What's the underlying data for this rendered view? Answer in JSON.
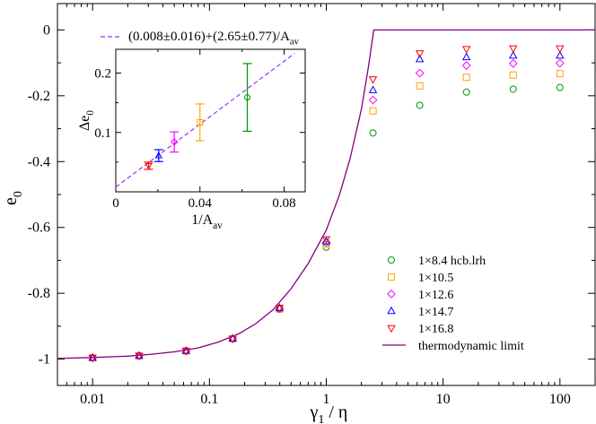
{
  "chart_data": [
    {
      "type": "scatter",
      "xscale": "log",
      "xlim": [
        0.005,
        200
      ],
      "ylim": [
        -1.08,
        0.08
      ],
      "xlabel_main": "γ",
      "xlabel_sub": "1",
      "xlabel_rest": " / η",
      "ylabel_main": "e",
      "ylabel_sub": "0",
      "xticks": [
        {
          "v": 0.01,
          "label": "0.01"
        },
        {
          "v": 0.1,
          "label": "0.1"
        },
        {
          "v": 1,
          "label": "1"
        },
        {
          "v": 10,
          "label": "10"
        },
        {
          "v": 100,
          "label": "100"
        }
      ],
      "yticks": [
        {
          "v": 0,
          "label": "0"
        },
        {
          "v": -0.2,
          "label": "-0.2"
        },
        {
          "v": -0.4,
          "label": "-0.4"
        },
        {
          "v": -0.6,
          "label": "-0.6"
        },
        {
          "v": -0.8,
          "label": "-0.8"
        },
        {
          "v": -1,
          "label": "-1"
        }
      ],
      "series": [
        {
          "name": "1×8.4  hcb.lrh",
          "marker": "circle",
          "color": "#009900",
          "x": [
            0.01,
            0.025,
            0.063,
            0.158,
            0.398,
            1,
            2.512,
            6.31,
            15.85,
            39.81,
            100
          ],
          "y": [
            -0.996,
            -0.99,
            -0.975,
            -0.938,
            -0.848,
            -0.66,
            -0.313,
            -0.229,
            -0.189,
            -0.18,
            -0.175
          ]
        },
        {
          "name": "1×10.5",
          "marker": "square",
          "color": "#ffa500",
          "x": [
            0.01,
            0.025,
            0.063,
            0.158,
            0.398,
            1,
            2.512,
            6.31,
            15.85,
            39.81,
            100
          ],
          "y": [
            -0.996,
            -0.99,
            -0.975,
            -0.938,
            -0.848,
            -0.651,
            -0.246,
            -0.17,
            -0.144,
            -0.137,
            -0.133
          ]
        },
        {
          "name": "1×12.6",
          "marker": "diamond",
          "color": "#ff00ff",
          "x": [
            0.01,
            0.025,
            0.063,
            0.158,
            0.398,
            1,
            2.512,
            6.31,
            15.85,
            39.81,
            100
          ],
          "y": [
            -0.996,
            -0.99,
            -0.975,
            -0.938,
            -0.847,
            -0.646,
            -0.213,
            -0.131,
            -0.108,
            -0.102,
            -0.101
          ]
        },
        {
          "name": "1×14.7",
          "marker": "triangle-up",
          "color": "#0000ff",
          "x": [
            0.01,
            0.025,
            0.063,
            0.158,
            0.398,
            1,
            2.512,
            6.31,
            15.85,
            39.81,
            100
          ],
          "y": [
            -0.996,
            -0.99,
            -0.975,
            -0.938,
            -0.845,
            -0.642,
            -0.183,
            -0.089,
            -0.083,
            -0.078,
            -0.078
          ]
        },
        {
          "name": "1×16.8",
          "marker": "triangle-down",
          "color": "#ff0000",
          "x": [
            0.01,
            0.025,
            0.063,
            0.158,
            0.398,
            1,
            2.512,
            6.31,
            15.85,
            39.81,
            100
          ],
          "y": [
            -0.996,
            -0.99,
            -0.975,
            -0.938,
            -0.844,
            -0.636,
            -0.15,
            -0.071,
            -0.058,
            -0.056,
            -0.056
          ]
        }
      ],
      "line": {
        "name": "thermodynamic limit",
        "color": "#800080",
        "x": [
          0.005,
          0.01,
          0.02,
          0.03,
          0.05,
          0.08,
          0.12,
          0.18,
          0.25,
          0.35,
          0.5,
          0.7,
          1.0,
          1.3,
          1.6,
          2.0,
          2.3,
          2.55,
          3,
          10,
          100,
          200
        ],
        "y": [
          -0.998,
          -0.995,
          -0.991,
          -0.986,
          -0.978,
          -0.966,
          -0.948,
          -0.922,
          -0.892,
          -0.85,
          -0.786,
          -0.71,
          -0.608,
          -0.5,
          -0.39,
          -0.24,
          -0.11,
          0,
          0,
          0,
          0,
          0
        ]
      },
      "legend": {
        "position": "bottom-right"
      }
    },
    {
      "type": "scatter",
      "inset": true,
      "xlim": [
        0,
        0.09
      ],
      "ylim": [
        0,
        0.24
      ],
      "xlabel_main": "1/A",
      "xlabel_sub": "av",
      "ylabel_main": "Δe",
      "ylabel_sub": "0",
      "xticks": [
        {
          "v": 0,
          "label": "0"
        },
        {
          "v": 0.04,
          "label": "0.04"
        },
        {
          "v": 0.08,
          "label": "0.08"
        }
      ],
      "yticks": [
        {
          "v": 0.1,
          "label": "0.1"
        },
        {
          "v": 0.2,
          "label": "0.2"
        }
      ],
      "fit": {
        "label_main": "(0.008±0.016)+(2.65±0.77)/A",
        "label_sub": "av",
        "intercept": 0.008,
        "slope": 2.65,
        "color": "#9933ff"
      },
      "points": [
        {
          "marker": "circle",
          "color": "#009900",
          "x": 0.0625,
          "y": 0.159,
          "err": 0.057
        },
        {
          "marker": "square",
          "color": "#ffa500",
          "x": 0.04,
          "y": 0.117,
          "err": 0.031
        },
        {
          "marker": "diamond",
          "color": "#ff00ff",
          "x": 0.0278,
          "y": 0.084,
          "err": 0.017
        },
        {
          "marker": "triangle-up",
          "color": "#0000ff",
          "x": 0.0204,
          "y": 0.061,
          "err": 0.01
        },
        {
          "marker": "triangle-down",
          "color": "#ff0000",
          "x": 0.0156,
          "y": 0.044,
          "err": 0.006
        }
      ]
    }
  ]
}
